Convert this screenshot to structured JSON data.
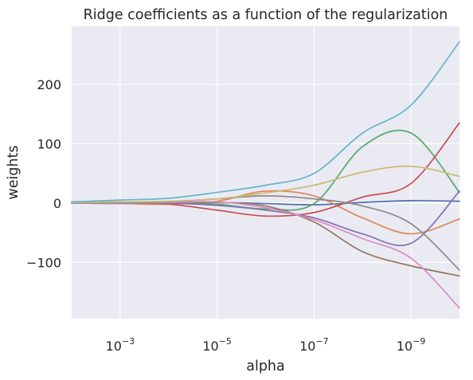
{
  "chart_data": {
    "type": "line",
    "title": "Ridge coefficients as a function of the regularization",
    "xlabel": "alpha",
    "ylabel": "weights",
    "x_scale": "log",
    "x_reversed": true,
    "xlim": [
      0.01,
      1e-10
    ],
    "ylim": [
      -195,
      298
    ],
    "grid": true,
    "background": "#eaeaf2",
    "xticks": [
      {
        "value": 0.001,
        "base": "10",
        "exp": "−3"
      },
      {
        "value": 1e-05,
        "base": "10",
        "exp": "−5"
      },
      {
        "value": 1e-07,
        "base": "10",
        "exp": "−7"
      },
      {
        "value": 1e-09,
        "base": "10",
        "exp": "−9"
      }
    ],
    "yticks": [
      {
        "value": 200,
        "label": "200"
      },
      {
        "value": 100,
        "label": "100"
      },
      {
        "value": 0,
        "label": "0"
      },
      {
        "value": -100,
        "label": "−100"
      }
    ],
    "x": [
      0.01,
      0.001,
      0.0001,
      1e-05,
      1e-06,
      1e-07,
      1e-08,
      1e-09,
      1e-10
    ],
    "series": [
      {
        "color": "#4c72b0",
        "values": [
          0,
          1,
          2,
          1,
          -1,
          -3,
          1,
          4,
          3
        ]
      },
      {
        "color": "#dd8452",
        "values": [
          0,
          -1,
          -2,
          3,
          20,
          12,
          -25,
          -52,
          -27
        ]
      },
      {
        "color": "#55a868",
        "values": [
          2,
          2,
          1,
          -2,
          -10,
          -1,
          95,
          118,
          18
        ]
      },
      {
        "color": "#c44e52",
        "values": [
          0,
          0,
          -2,
          -12,
          -22,
          -16,
          10,
          33,
          135
        ]
      },
      {
        "color": "#8172b3",
        "values": [
          1,
          1,
          0,
          -4,
          -12,
          -25,
          -52,
          -68,
          20
        ]
      },
      {
        "color": "#937860",
        "values": [
          0,
          1,
          1,
          1,
          -5,
          -32,
          -82,
          -106,
          -123
        ]
      },
      {
        "color": "#da8bc3",
        "values": [
          0,
          -1,
          1,
          2,
          -8,
          -28,
          -60,
          -93,
          -177
        ]
      },
      {
        "color": "#8c8c8c",
        "values": [
          0,
          0,
          2,
          7,
          12,
          7,
          -5,
          -35,
          -113
        ]
      },
      {
        "color": "#ccb974",
        "values": [
          1,
          2,
          3,
          7,
          17,
          30,
          52,
          62,
          45
        ]
      },
      {
        "color": "#64b5cd",
        "values": [
          2,
          5,
          8,
          18,
          30,
          50,
          118,
          165,
          272
        ]
      }
    ]
  }
}
